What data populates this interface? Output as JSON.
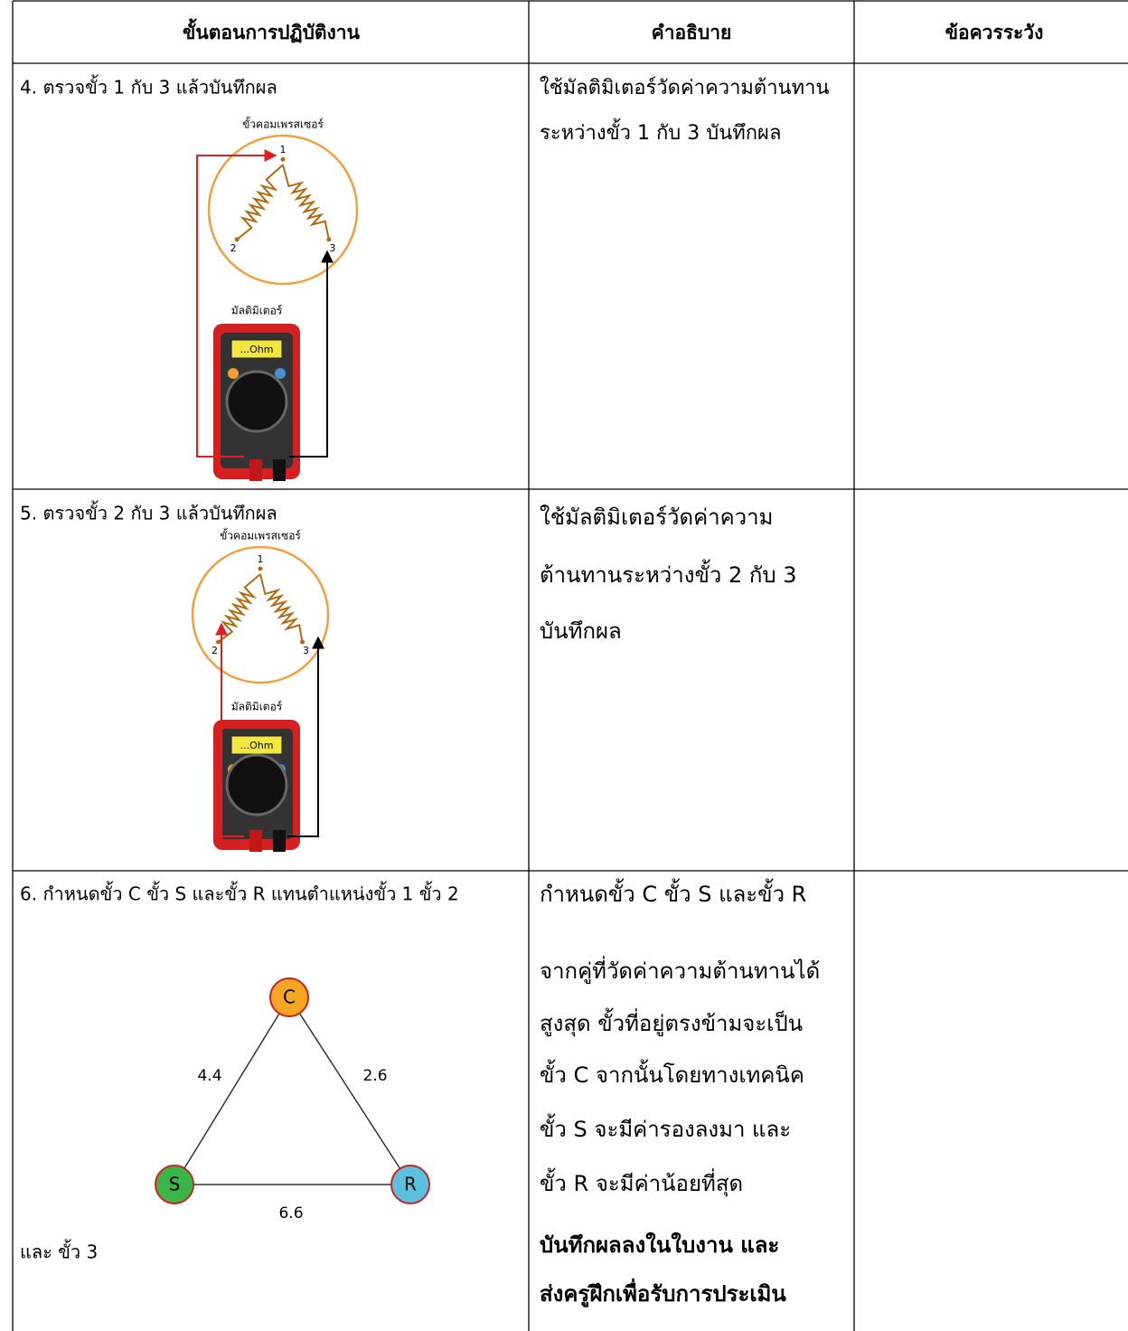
{
  "header": [
    "ขั้นตอนการปฏิบัติงาน",
    "คำอธิบาย",
    "ข้อควรระวัง"
  ],
  "rows": [
    {
      "step": "4. ตรวจขั้ว 1 กับ 3 แล้วบันทึกผล",
      "description": [
        "ใช้มัลติมิเตอร์วัดค่าความต้านทาน",
        "ระหว่างขั้ว 1 กับ 3 บันทึกผล"
      ],
      "figure": {
        "caption": "ขั้วคอมเพรสเซอร์",
        "terminals": [
          "1",
          "2",
          "3"
        ],
        "meter": "มัลติมิเตอร์",
        "display": "...Ohm"
      }
    },
    {
      "step": "5. ตรวจขั้ว 2 กับ 3 แล้วบันทึกผล",
      "description": [
        "ใช้มัลติมิเตอร์วัดค่าความ",
        "ต้านทานระหว่างขั้ว 2 กับ 3",
        "บันทึกผล"
      ],
      "figure": {
        "caption": "ขั้วคอมเพรสเซอร์",
        "terminals": [
          "1",
          "2",
          "3"
        ],
        "meter": "มัลติมิเตอร์",
        "display": "...Ohm"
      }
    },
    {
      "step": "6. กำหนดขั้ว C ขั้ว S และขั้ว R แทนตำแหน่งขั้ว 1 ขั้ว 2",
      "step_continued": "และ ขั้ว 3",
      "description": [
        "กำหนดขั้ว C ขั้ว S และขั้ว R",
        "จากคู่ที่วัดค่าความต้านทานได้",
        "สูงสุด ขั้วที่อยู่ตรงข้ามจะเป็น",
        "ขั้ว C จากนั้นโดยทางเทคนิค",
        "ขั้ว S จะมีค่ารองลงมา และ",
        "ขั้ว R จะมีค่าน้อยที่สุด"
      ],
      "description_bold": [
        "บันทึกผลลงในใบงาน และ",
        "ส่งครูฝึกเพื่อรับการประเมิน"
      ],
      "figure": {
        "nodes": [
          "C",
          "S",
          "R"
        ],
        "edges": [
          "4.4",
          "2.6",
          "6.6"
        ]
      }
    }
  ]
}
